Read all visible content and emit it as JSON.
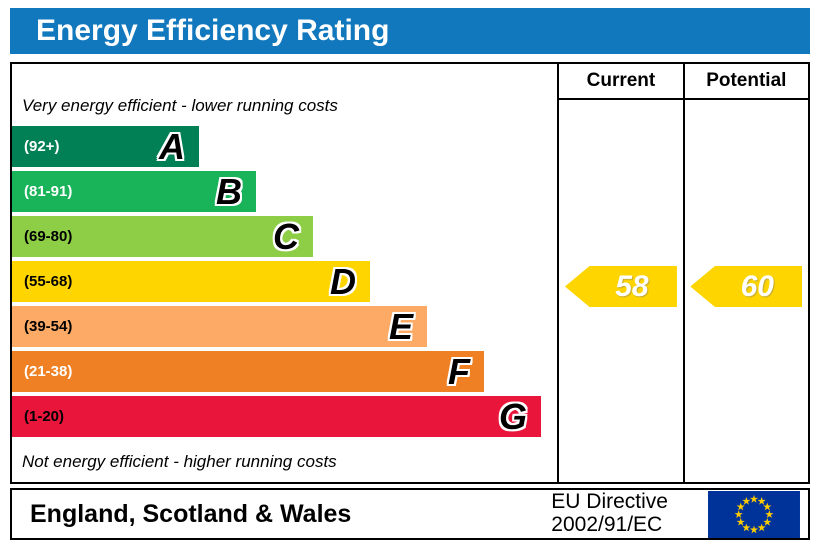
{
  "title": "Energy Efficiency Rating",
  "colors": {
    "title_bar": "#1278be",
    "border": "#000000",
    "flag_blue": "#003399",
    "flag_yellow": "#ffcc00"
  },
  "columns": {
    "current": "Current",
    "potential": "Potential"
  },
  "captions": {
    "top": "Very energy efficient - lower running costs",
    "bottom": "Not energy efficient - higher running costs"
  },
  "bands": [
    {
      "letter": "A",
      "range": "(92+)",
      "color": "#008054",
      "range_color": "#ffffff"
    },
    {
      "letter": "B",
      "range": "(81-91)",
      "color": "#19b459",
      "range_color": "#ffffff"
    },
    {
      "letter": "C",
      "range": "(69-80)",
      "color": "#8dce46",
      "range_color": "#000000"
    },
    {
      "letter": "D",
      "range": "(55-68)",
      "color": "#ffd500",
      "range_color": "#000000"
    },
    {
      "letter": "E",
      "range": "(39-54)",
      "color": "#fcaa65",
      "range_color": "#000000"
    },
    {
      "letter": "F",
      "range": "(21-38)",
      "color": "#ef8023",
      "range_color": "#ffffff"
    },
    {
      "letter": "G",
      "range": "(1-20)",
      "color": "#e9153b",
      "range_color": "#000000"
    }
  ],
  "ratings": {
    "current": {
      "value": "58",
      "color": "#ffd500",
      "band": "D"
    },
    "potential": {
      "value": "60",
      "color": "#ffd500",
      "band": "D"
    }
  },
  "footer": {
    "region": "England, Scotland & Wales",
    "directive_line1": "EU Directive",
    "directive_line2": "2002/91/EC"
  },
  "chart_data": {
    "type": "bar",
    "title": "Energy Efficiency Rating",
    "categories": [
      "A",
      "B",
      "C",
      "D",
      "E",
      "F",
      "G"
    ],
    "band_ranges": [
      "92+",
      "81-91",
      "69-80",
      "55-68",
      "39-54",
      "21-38",
      "1-20"
    ],
    "band_colors": [
      "#008054",
      "#19b459",
      "#8dce46",
      "#ffd500",
      "#fcaa65",
      "#ef8023",
      "#e9153b"
    ],
    "scale": [
      1,
      100
    ],
    "series": [
      {
        "name": "Current",
        "values": [
          58
        ],
        "band": "D"
      },
      {
        "name": "Potential",
        "values": [
          60
        ],
        "band": "D"
      }
    ],
    "annotations": [
      "Very energy efficient - lower running costs",
      "Not energy efficient - higher running costs"
    ],
    "legend_position": "none",
    "grid": false
  }
}
